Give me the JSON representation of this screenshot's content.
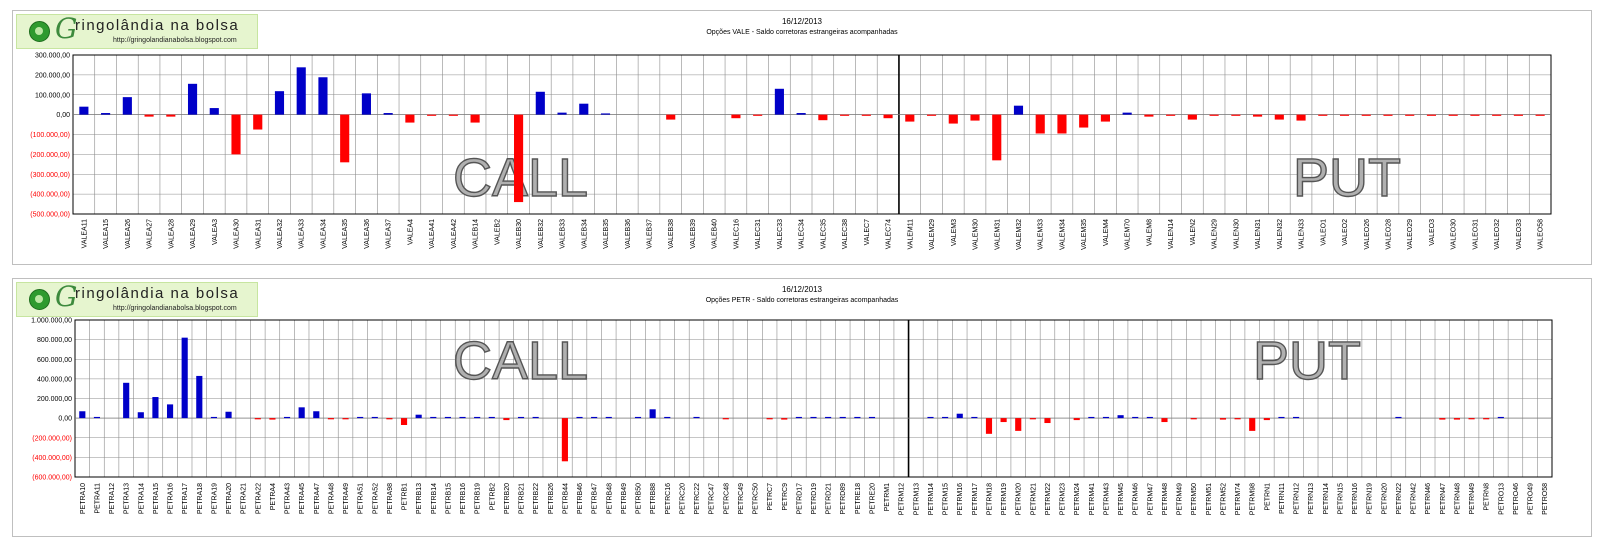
{
  "logo": {
    "g": "G",
    "name": "ringolândia na bolsa",
    "url": "http://gringolandianabolsa.blogspot.com"
  },
  "colors": {
    "positive": "#0000c8",
    "negative": "#ff0000"
  },
  "chart_data": [
    {
      "type": "bar",
      "date": "16/12/2013",
      "title": "Opções VALE - Saldo corretoras estrangeiras acompanhadas",
      "ylim": [
        -500000,
        300000
      ],
      "yticks": [
        "300.000,00",
        "200.000,00",
        "100.000,00",
        "0,00",
        "(100.000,00)",
        "(200.000,00)",
        "(300.000,00)",
        "(400.000,00)",
        "(500.000,00)"
      ],
      "grid": true,
      "split_index": 38,
      "region_labels": [
        "CALL",
        "PUT"
      ],
      "categories": [
        "VALEA11",
        "VALEA15",
        "VALEA26",
        "VALEA27",
        "VALEA28",
        "VALEA29",
        "VALEA3",
        "VALEA30",
        "VALEA31",
        "VALEA32",
        "VALEA33",
        "VALEA34",
        "VALEA35",
        "VALEA36",
        "VALEA37",
        "VALEA4",
        "VALEA41",
        "VALEA42",
        "VALEB14",
        "VALEB2",
        "VALEB30",
        "VALEB32",
        "VALEB33",
        "VALEB34",
        "VALEB35",
        "VALEB36",
        "VALEB37",
        "VALEB38",
        "VALEB39",
        "VALEB40",
        "VALEC16",
        "VALEC31",
        "VALEC33",
        "VALEC34",
        "VALEC35",
        "VALEC38",
        "VALEC7",
        "VALEC74",
        "VALEM11",
        "VALEM29",
        "VALEM3",
        "VALEM30",
        "VALEM31",
        "VALEM32",
        "VALEM33",
        "VALEM34",
        "VALEM35",
        "VALEM4",
        "VALEM70",
        "VALEM8",
        "VALEN14",
        "VALEN2",
        "VALEN29",
        "VALEN30",
        "VALEN31",
        "VALEN32",
        "VALEN33",
        "VALEO1",
        "VALEO2",
        "VALEO26",
        "VALEO28",
        "VALEO29",
        "VALEO3",
        "VALEO30",
        "VALEO31",
        "VALEO32",
        "VALEO33",
        "VALEO58"
      ],
      "values": [
        40000,
        8000,
        88000,
        -10000,
        -10000,
        155000,
        33000,
        -200000,
        -75000,
        118000,
        238000,
        188000,
        -240000,
        107000,
        8000,
        -40000,
        -4000,
        -4000,
        -40000,
        0,
        -440000,
        115000,
        10000,
        55000,
        4000,
        0,
        0,
        -25000,
        0,
        0,
        -18000,
        -4000,
        130000,
        8000,
        -28000,
        -4000,
        -4000,
        -18000,
        -35000,
        -4000,
        -45000,
        -30000,
        -230000,
        45000,
        -95000,
        -95000,
        -65000,
        -35000,
        10000,
        -10000,
        -4000,
        -25000,
        -4000,
        -4000,
        -10000,
        -25000,
        -30000,
        -4000,
        -4000,
        -4000,
        -4000,
        -4000,
        -4000,
        -4000,
        -4000,
        -4000,
        -4000,
        -4000
      ]
    },
    {
      "type": "bar",
      "date": "16/12/2013",
      "title": "Opções PETR - Saldo corretoras estrangeiras acompanhadas",
      "ylim": [
        -600000,
        1000000
      ],
      "yticks": [
        "1.000.000,00",
        "800.000,00",
        "600.000,00",
        "400.000,00",
        "200.000,00",
        "0,00",
        "(200.000,00)",
        "(400.000,00)",
        "(600.000,00)"
      ],
      "grid": true,
      "split_index": 57,
      "region_labels": [
        "CALL",
        "PUT"
      ],
      "categories": [
        "PETRA10",
        "PETRA11",
        "PETRA12",
        "PETRA13",
        "PETRA14",
        "PETRA15",
        "PETRA16",
        "PETRA17",
        "PETRA18",
        "PETRA19",
        "PETRA20",
        "PETRA21",
        "PETRA22",
        "PETRA4",
        "PETRA43",
        "PETRA45",
        "PETRA47",
        "PETRA48",
        "PETRA49",
        "PETRA51",
        "PETRA52",
        "PETRA98",
        "PETRB1",
        "PETRB13",
        "PETRB14",
        "PETRB15",
        "PETRB16",
        "PETRB19",
        "PETRB2",
        "PETRB20",
        "PETRB21",
        "PETRB22",
        "PETRB26",
        "PETRB44",
        "PETRB46",
        "PETRB47",
        "PETRB48",
        "PETRB49",
        "PETRB50",
        "PETRB88",
        "PETRC16",
        "PETRC20",
        "PETRC22",
        "PETRC47",
        "PETRC48",
        "PETRC49",
        "PETRC50",
        "PETRC7",
        "PETRC9",
        "PETRD17",
        "PETRD19",
        "PETRD21",
        "PETRD89",
        "PETRE18",
        "PETRE20",
        "PETRM1",
        "PETRM12",
        "PETRM13",
        "PETRM14",
        "PETRM15",
        "PETRM16",
        "PETRM17",
        "PETRM18",
        "PETRM19",
        "PETRM20",
        "PETRM21",
        "PETRM22",
        "PETRM23",
        "PETRM24",
        "PETRM41",
        "PETRM43",
        "PETRM45",
        "PETRM46",
        "PETRM47",
        "PETRM48",
        "PETRM49",
        "PETRM50",
        "PETRM51",
        "PETRM52",
        "PETRM74",
        "PETRM98",
        "PETRN1",
        "PETRN11",
        "PETRN12",
        "PETRN13",
        "PETRN14",
        "PETRN15",
        "PETRN16",
        "PETRN19",
        "PETRN20",
        "PETRN22",
        "PETRN42",
        "PETRN46",
        "PETRN47",
        "PETRN48",
        "PETRN49",
        "PETRN8",
        "PETRO13",
        "PETRO46",
        "PETRO49",
        "PETRO58"
      ],
      "values": [
        70000,
        10000,
        0,
        360000,
        60000,
        215000,
        140000,
        820000,
        430000,
        10000,
        65000,
        0,
        -4000,
        -15000,
        10000,
        110000,
        70000,
        -4000,
        -4000,
        4000,
        4000,
        -4000,
        -70000,
        35000,
        4000,
        4000,
        4000,
        4000,
        4000,
        -20000,
        4000,
        4000,
        0,
        -440000,
        4000,
        4000,
        4000,
        0,
        4000,
        90000,
        10000,
        0,
        4000,
        0,
        -4000,
        0,
        0,
        -4000,
        -15000,
        4000,
        4000,
        4000,
        4000,
        4000,
        4000,
        0,
        0,
        0,
        4000,
        10000,
        45000,
        10000,
        -160000,
        -40000,
        -130000,
        -10000,
        -50000,
        0,
        -20000,
        4000,
        4000,
        30000,
        4000,
        4000,
        -40000,
        0,
        -4000,
        0,
        -15000,
        -4000,
        -130000,
        -20000,
        4000,
        4000,
        0,
        0,
        0,
        0,
        0,
        0,
        10000,
        0,
        0,
        -15000,
        -15000,
        -4000,
        -4000,
        4000,
        0,
        0,
        0
      ]
    }
  ]
}
